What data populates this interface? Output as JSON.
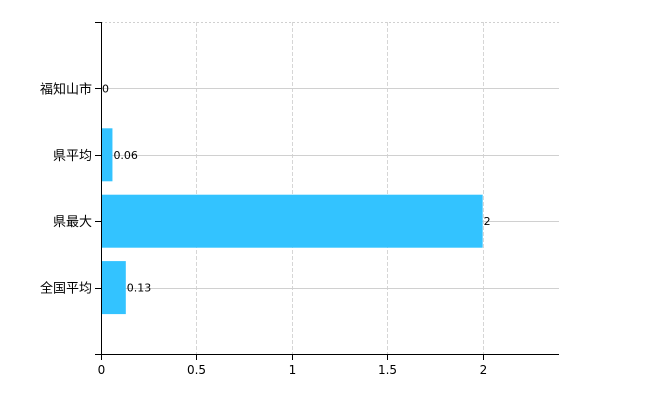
{
  "chart_data": {
    "type": "bar",
    "orientation": "horizontal",
    "categories": [
      "福知山市",
      "県平均",
      "県最大",
      "全国平均"
    ],
    "values": [
      0,
      0.06,
      2,
      0.13
    ],
    "data_labels": [
      "0",
      "0.06",
      "2",
      "0.13"
    ],
    "title": "",
    "xlabel": "",
    "ylabel": "",
    "xlim": [
      0,
      2.4
    ],
    "xticks": [
      0,
      0.5,
      1,
      1.5,
      2
    ],
    "xtick_labels": [
      "0",
      "0.5",
      "1",
      "1.5",
      "2"
    ],
    "grid": true,
    "legend": "none",
    "bar_color": "#33c3ff"
  }
}
